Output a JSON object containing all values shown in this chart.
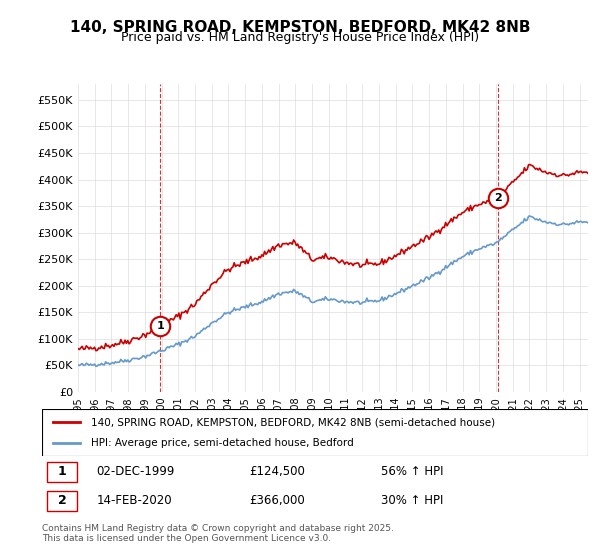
{
  "title": "140, SPRING ROAD, KEMPSTON, BEDFORD, MK42 8NB",
  "subtitle": "Price paid vs. HM Land Registry's House Price Index (HPI)",
  "legend_line1": "140, SPRING ROAD, KEMPSTON, BEDFORD, MK42 8NB (semi-detached house)",
  "legend_line2": "HPI: Average price, semi-detached house, Bedford",
  "purchase1_label": "1",
  "purchase1_date": "02-DEC-1999",
  "purchase1_price": "£124,500",
  "purchase1_hpi": "56% ↑ HPI",
  "purchase2_label": "2",
  "purchase2_date": "14-FEB-2020",
  "purchase2_price": "£366,000",
  "purchase2_hpi": "30% ↑ HPI",
  "footnote": "Contains HM Land Registry data © Crown copyright and database right 2025.\nThis data is licensed under the Open Government Licence v3.0.",
  "red_color": "#cc0000",
  "blue_color": "#6699cc",
  "dashed_color": "#cc0000",
  "ylim": [
    0,
    580000
  ],
  "yticks": [
    0,
    50000,
    100000,
    150000,
    200000,
    250000,
    300000,
    350000,
    400000,
    450000,
    500000,
    550000
  ],
  "xlim_start": 1995.0,
  "xlim_end": 2025.5,
  "purchase1_x": 1999.92,
  "purchase1_y": 124500,
  "purchase2_x": 2020.12,
  "purchase2_y": 366000
}
